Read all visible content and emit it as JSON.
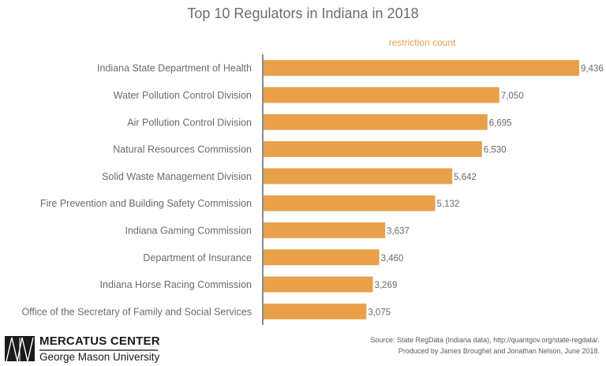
{
  "chart_data": {
    "type": "bar",
    "orientation": "horizontal",
    "title": "Top 10 Regulators in Indiana in 2018",
    "legend": "restriction count",
    "legend_position": "top-right",
    "xlabel": "",
    "ylabel": "",
    "grid": false,
    "xlim": [
      0,
      9436
    ],
    "bar_color": "#e8a14a",
    "categories": [
      "Indiana State Department of Health",
      "Water Pollution Control Division",
      "Air Pollution Control Division",
      "Natural Resources Commission",
      "Solid Waste Management Division",
      "Fire Prevention and Building Safety Commission",
      "Indiana Gaming Commission",
      "Department of Insurance",
      "Indiana Horse Racing Commission",
      "Office of the Secretary of Family and Social Services"
    ],
    "values": [
      9436,
      7050,
      6695,
      6530,
      5642,
      5132,
      3637,
      3460,
      3269,
      3075
    ],
    "value_labels": [
      "9,436",
      "7,050",
      "6,695",
      "6,530",
      "5,642",
      "5,132",
      "3,637",
      "3,460",
      "3,269",
      "3,075"
    ]
  },
  "footer": {
    "logo_top": "MERCATUS CENTER",
    "logo_bottom": "George Mason University",
    "source_line1": "Source: State RegData (Indiana data), http://quantgov.org/state-regdata/.",
    "source_line2": "Produced by James Broughel and Jonathan Nelson, June 2018."
  }
}
